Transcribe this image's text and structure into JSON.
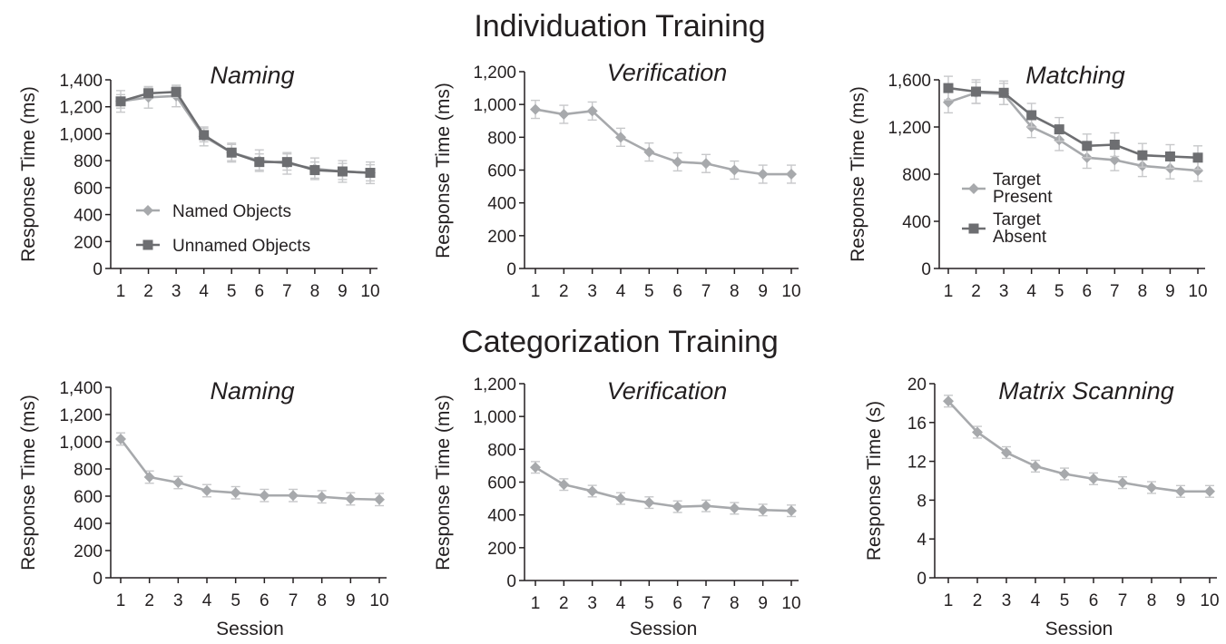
{
  "figure": {
    "sections": [
      {
        "title": "Individuation Training"
      },
      {
        "title": "Categorization Training"
      }
    ]
  },
  "colors": {
    "light_series": "#a7a9ac",
    "dark_series": "#6d6e71",
    "axis": "#231f20",
    "text": "#231f20",
    "error_bar": "#c7c8ca"
  },
  "chart_data": [
    {
      "type": "line",
      "section": "Individuation Training",
      "title": "Naming",
      "xlabel": "",
      "ylabel": "Response Time (ms)",
      "x": [
        1,
        2,
        3,
        4,
        5,
        6,
        7,
        8,
        9,
        10
      ],
      "ylim": [
        0,
        1400
      ],
      "yticks": [
        0,
        200,
        400,
        600,
        800,
        1000,
        1200,
        1400
      ],
      "ytick_labels": [
        "0",
        "200",
        "400",
        "600",
        "800",
        "1,000",
        "1,200",
        "1,400"
      ],
      "grid": false,
      "legend_position": "bottom-left",
      "series": [
        {
          "name": "Named Objects",
          "style": "light",
          "marker": "diamond",
          "values": [
            1240,
            1270,
            1280,
            980,
            860,
            800,
            780,
            740,
            720,
            710
          ],
          "errors": [
            80,
            80,
            80,
            70,
            70,
            80,
            80,
            80,
            80,
            80
          ]
        },
        {
          "name": "Unnamed Objects",
          "style": "dark",
          "marker": "square",
          "values": [
            1240,
            1300,
            1310,
            990,
            860,
            790,
            790,
            730,
            720,
            710
          ],
          "errors": [
            50,
            40,
            40,
            50,
            60,
            60,
            60,
            60,
            60,
            60
          ]
        }
      ]
    },
    {
      "type": "line",
      "section": "Individuation Training",
      "title": "Verification",
      "xlabel": "",
      "ylabel": "Response Time (ms)",
      "x": [
        1,
        2,
        3,
        4,
        5,
        6,
        7,
        8,
        9,
        10
      ],
      "ylim": [
        0,
        1200
      ],
      "yticks": [
        0,
        200,
        400,
        600,
        800,
        1000,
        1200
      ],
      "ytick_labels": [
        "0",
        "200",
        "400",
        "600",
        "800",
        "1,000",
        "1,200"
      ],
      "grid": false,
      "series": [
        {
          "style": "light",
          "marker": "diamond",
          "values": [
            970,
            940,
            960,
            800,
            710,
            650,
            640,
            600,
            575,
            575
          ],
          "errors": [
            55,
            55,
            55,
            55,
            55,
            55,
            55,
            55,
            55,
            55
          ]
        }
      ]
    },
    {
      "type": "line",
      "section": "Individuation Training",
      "title": "Matching",
      "xlabel": "",
      "ylabel": "Response Time (ms)",
      "x": [
        1,
        2,
        3,
        4,
        5,
        6,
        7,
        8,
        9,
        10
      ],
      "ylim": [
        0,
        1600
      ],
      "yticks": [
        0,
        400,
        800,
        1200,
        1600
      ],
      "ytick_labels": [
        "0",
        "400",
        "800",
        "1,200",
        "1,600"
      ],
      "grid": false,
      "legend_position": "left",
      "series": [
        {
          "name": "Target Present",
          "name_lines": [
            "Target",
            "Present"
          ],
          "style": "light",
          "marker": "diamond",
          "values": [
            1410,
            1490,
            1480,
            1200,
            1090,
            940,
            920,
            870,
            850,
            830
          ],
          "errors": [
            90,
            90,
            90,
            90,
            90,
            90,
            90,
            90,
            90,
            90
          ]
        },
        {
          "name": "Target Absent",
          "name_lines": [
            "Target",
            "Absent"
          ],
          "style": "dark",
          "marker": "square",
          "values": [
            1530,
            1500,
            1490,
            1300,
            1180,
            1040,
            1050,
            960,
            950,
            940
          ],
          "errors": [
            100,
            100,
            100,
            100,
            100,
            100,
            100,
            100,
            100,
            100
          ]
        }
      ]
    },
    {
      "type": "line",
      "section": "Categorization Training",
      "title": "Naming",
      "xlabel": "Session",
      "ylabel": "Response Time (ms)",
      "x": [
        1,
        2,
        3,
        4,
        5,
        6,
        7,
        8,
        9,
        10
      ],
      "ylim": [
        0,
        1400
      ],
      "yticks": [
        0,
        200,
        400,
        600,
        800,
        1000,
        1200,
        1400
      ],
      "ytick_labels": [
        "0",
        "200",
        "400",
        "600",
        "800",
        "1,000",
        "1,200",
        "1,400"
      ],
      "grid": false,
      "series": [
        {
          "style": "light",
          "marker": "diamond",
          "values": [
            1020,
            740,
            700,
            640,
            625,
            605,
            605,
            595,
            580,
            575
          ],
          "errors": [
            45,
            45,
            45,
            45,
            45,
            45,
            45,
            45,
            45,
            45
          ]
        }
      ]
    },
    {
      "type": "line",
      "section": "Categorization Training",
      "title": "Verification",
      "xlabel": "Session",
      "ylabel": "Response Time (ms)",
      "x": [
        1,
        2,
        3,
        4,
        5,
        6,
        7,
        8,
        9,
        10
      ],
      "ylim": [
        0,
        1200
      ],
      "yticks": [
        0,
        200,
        400,
        600,
        800,
        1000,
        1200
      ],
      "ytick_labels": [
        "0",
        "200",
        "400",
        "600",
        "800",
        "1,000",
        "1,200"
      ],
      "grid": false,
      "series": [
        {
          "style": "light",
          "marker": "diamond",
          "values": [
            690,
            585,
            545,
            500,
            475,
            450,
            455,
            440,
            430,
            425
          ],
          "errors": [
            35,
            35,
            35,
            35,
            35,
            35,
            35,
            35,
            35,
            35
          ]
        }
      ]
    },
    {
      "type": "line",
      "section": "Categorization Training",
      "title": "Matrix Scanning",
      "xlabel": "Session",
      "ylabel": "Response Time (s)",
      "x": [
        1,
        2,
        3,
        4,
        5,
        6,
        7,
        8,
        9,
        10
      ],
      "ylim": [
        0,
        20
      ],
      "yticks": [
        0,
        4,
        8,
        12,
        16,
        20
      ],
      "ytick_labels": [
        "0",
        "4",
        "8",
        "12",
        "16",
        "20"
      ],
      "grid": false,
      "series": [
        {
          "style": "light",
          "marker": "diamond",
          "values": [
            18.2,
            15.0,
            12.9,
            11.5,
            10.7,
            10.2,
            9.8,
            9.3,
            8.9,
            8.9
          ],
          "errors": [
            0.6,
            0.6,
            0.6,
            0.6,
            0.6,
            0.6,
            0.6,
            0.6,
            0.6,
            0.6
          ]
        }
      ]
    }
  ]
}
